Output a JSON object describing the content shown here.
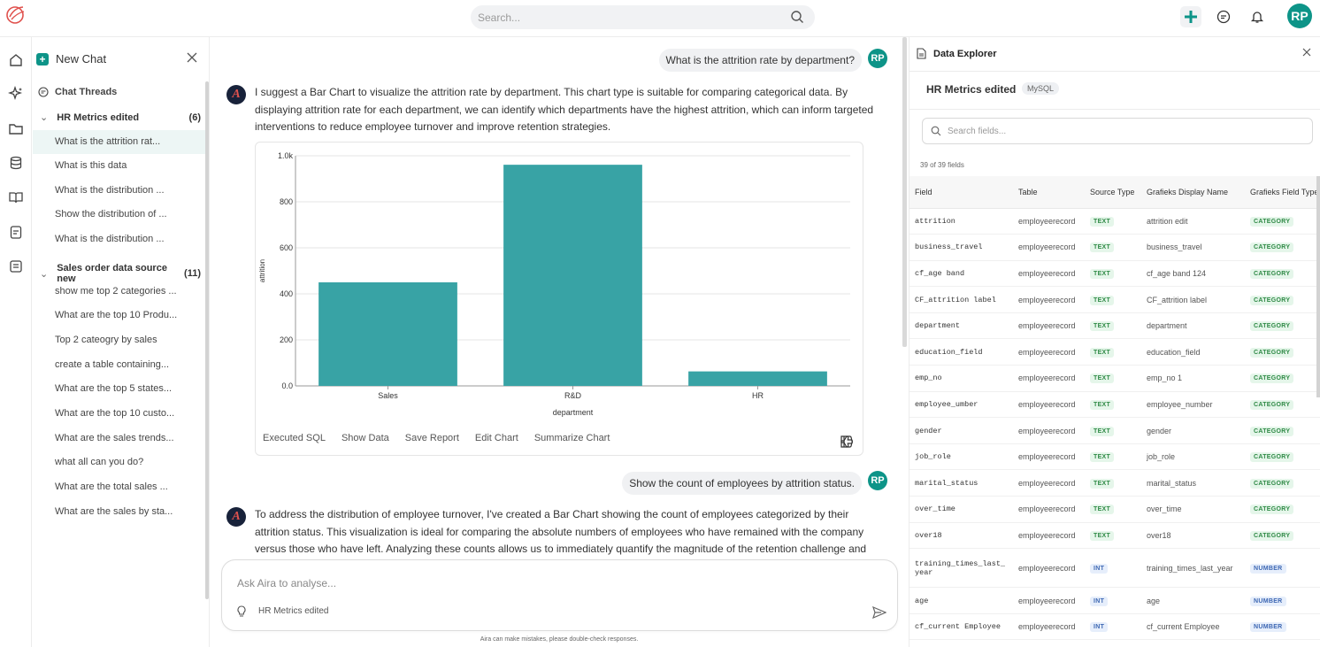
{
  "topbar": {
    "search_placeholder": "Search...",
    "avatar": "RP"
  },
  "sidebar": {
    "new_chat": "New Chat",
    "threads_title": "Chat Threads",
    "groups": [
      {
        "name": "HR Metrics edited",
        "count": "(6)",
        "items": [
          "What is the attrition rat...",
          "What is this data",
          "What is the distribution ...",
          "Show the distribution of ...",
          "What is the distribution ..."
        ]
      },
      {
        "name": "Sales order data source new",
        "count": "(11)",
        "items": [
          "show me top 2 categories ...",
          "What are the top 10 Produ...",
          "Top 2 cateogry by sales",
          "create a table containing...",
          "What are the top 5 states...",
          "What are the top 10 custo...",
          "What are the sales trends...",
          "what all can you do?",
          "What are the total sales ...",
          "What are the sales by sta..."
        ]
      }
    ]
  },
  "chat": {
    "q1": "What is the attrition rate by department?",
    "a1": "I suggest a Bar Chart to visualize the attrition rate by department. This chart type is suitable for comparing categorical data. By displaying attrition rate for each department, we can identify which departments have the highest attrition, which can inform targeted interventions to reduce employee turnover and improve retention strategies.",
    "actions": [
      "Executed SQL",
      "Show Data",
      "Save Report",
      "Edit Chart",
      "Summarize Chart"
    ],
    "q2": "Show the count of employees by attrition status.",
    "a2": "To address the distribution of employee turnover, I've created a Bar Chart showing the count of employees categorized by their attrition status. This visualization is ideal for comparing the absolute numbers of employees who have remained with the company versus those who have left. Analyzing these counts allows us to immediately quantify the magnitude of the retention challenge and",
    "input_placeholder": "Ask Aira to analyse...",
    "context": "HR Metrics edited",
    "disclaimer": "Aira can make mistakes, please double-check responses.",
    "user_avatar": "RP",
    "aira_avatar": "A"
  },
  "chart_data": {
    "type": "bar",
    "categories": [
      "Sales",
      "R&D",
      "HR"
    ],
    "values": [
      450,
      961,
      63
    ],
    "xlabel": "department",
    "ylabel": "attrition",
    "ylim": [
      0,
      1000
    ],
    "yticks": [
      "0.0",
      "200",
      "400",
      "600",
      "800",
      "1.0k"
    ],
    "bar_color": "#38a3a5"
  },
  "explorer": {
    "title": "Data Explorer",
    "source_name": "HR Metrics edited",
    "source_type": "MySQL",
    "search_placeholder": "Search fields...",
    "count": "39 of 39 fields",
    "columns": [
      "Field",
      "Table",
      "Source Type",
      "Grafieks Display Name",
      "Grafieks Field Type"
    ],
    "rows": [
      {
        "field": "attrition",
        "table": "employeerecord",
        "type": "TEXT",
        "display": "attrition edit",
        "ftype": "CATEGORY"
      },
      {
        "field": "business_travel",
        "table": "employeerecord",
        "type": "TEXT",
        "display": "business_travel",
        "ftype": "CATEGORY"
      },
      {
        "field": "cf_age band",
        "table": "employeerecord",
        "type": "TEXT",
        "display": "cf_age band 124",
        "ftype": "CATEGORY"
      },
      {
        "field": "CF_attrition label",
        "table": "employeerecord",
        "type": "TEXT",
        "display": "CF_attrition label",
        "ftype": "CATEGORY"
      },
      {
        "field": "department",
        "table": "employeerecord",
        "type": "TEXT",
        "display": "department",
        "ftype": "CATEGORY"
      },
      {
        "field": "education_field",
        "table": "employeerecord",
        "type": "TEXT",
        "display": "education_field",
        "ftype": "CATEGORY"
      },
      {
        "field": "emp_no",
        "table": "employeerecord",
        "type": "TEXT",
        "display": "emp_no 1",
        "ftype": "CATEGORY"
      },
      {
        "field": "employee_umber",
        "table": "employeerecord",
        "type": "TEXT",
        "display": "employee_number",
        "ftype": "CATEGORY"
      },
      {
        "field": "gender",
        "table": "employeerecord",
        "type": "TEXT",
        "display": "gender",
        "ftype": "CATEGORY"
      },
      {
        "field": "job_role",
        "table": "employeerecord",
        "type": "TEXT",
        "display": "job_role",
        "ftype": "CATEGORY"
      },
      {
        "field": "marital_status",
        "table": "employeerecord",
        "type": "TEXT",
        "display": "marital_status",
        "ftype": "CATEGORY"
      },
      {
        "field": "over_time",
        "table": "employeerecord",
        "type": "TEXT",
        "display": "over_time",
        "ftype": "CATEGORY"
      },
      {
        "field": "over18",
        "table": "employeerecord",
        "type": "TEXT",
        "display": "over18",
        "ftype": "CATEGORY"
      },
      {
        "field": "training_times_last_ year",
        "table": "employeerecord",
        "type": "INT",
        "display": "training_times_last_year",
        "ftype": "NUMBER"
      },
      {
        "field": "age",
        "table": "employeerecord",
        "type": "INT",
        "display": "age",
        "ftype": "NUMBER"
      },
      {
        "field": "cf_current Employee",
        "table": "employeerecord",
        "type": "INT",
        "display": "cf_current Employee",
        "ftype": "NUMBER"
      }
    ]
  }
}
